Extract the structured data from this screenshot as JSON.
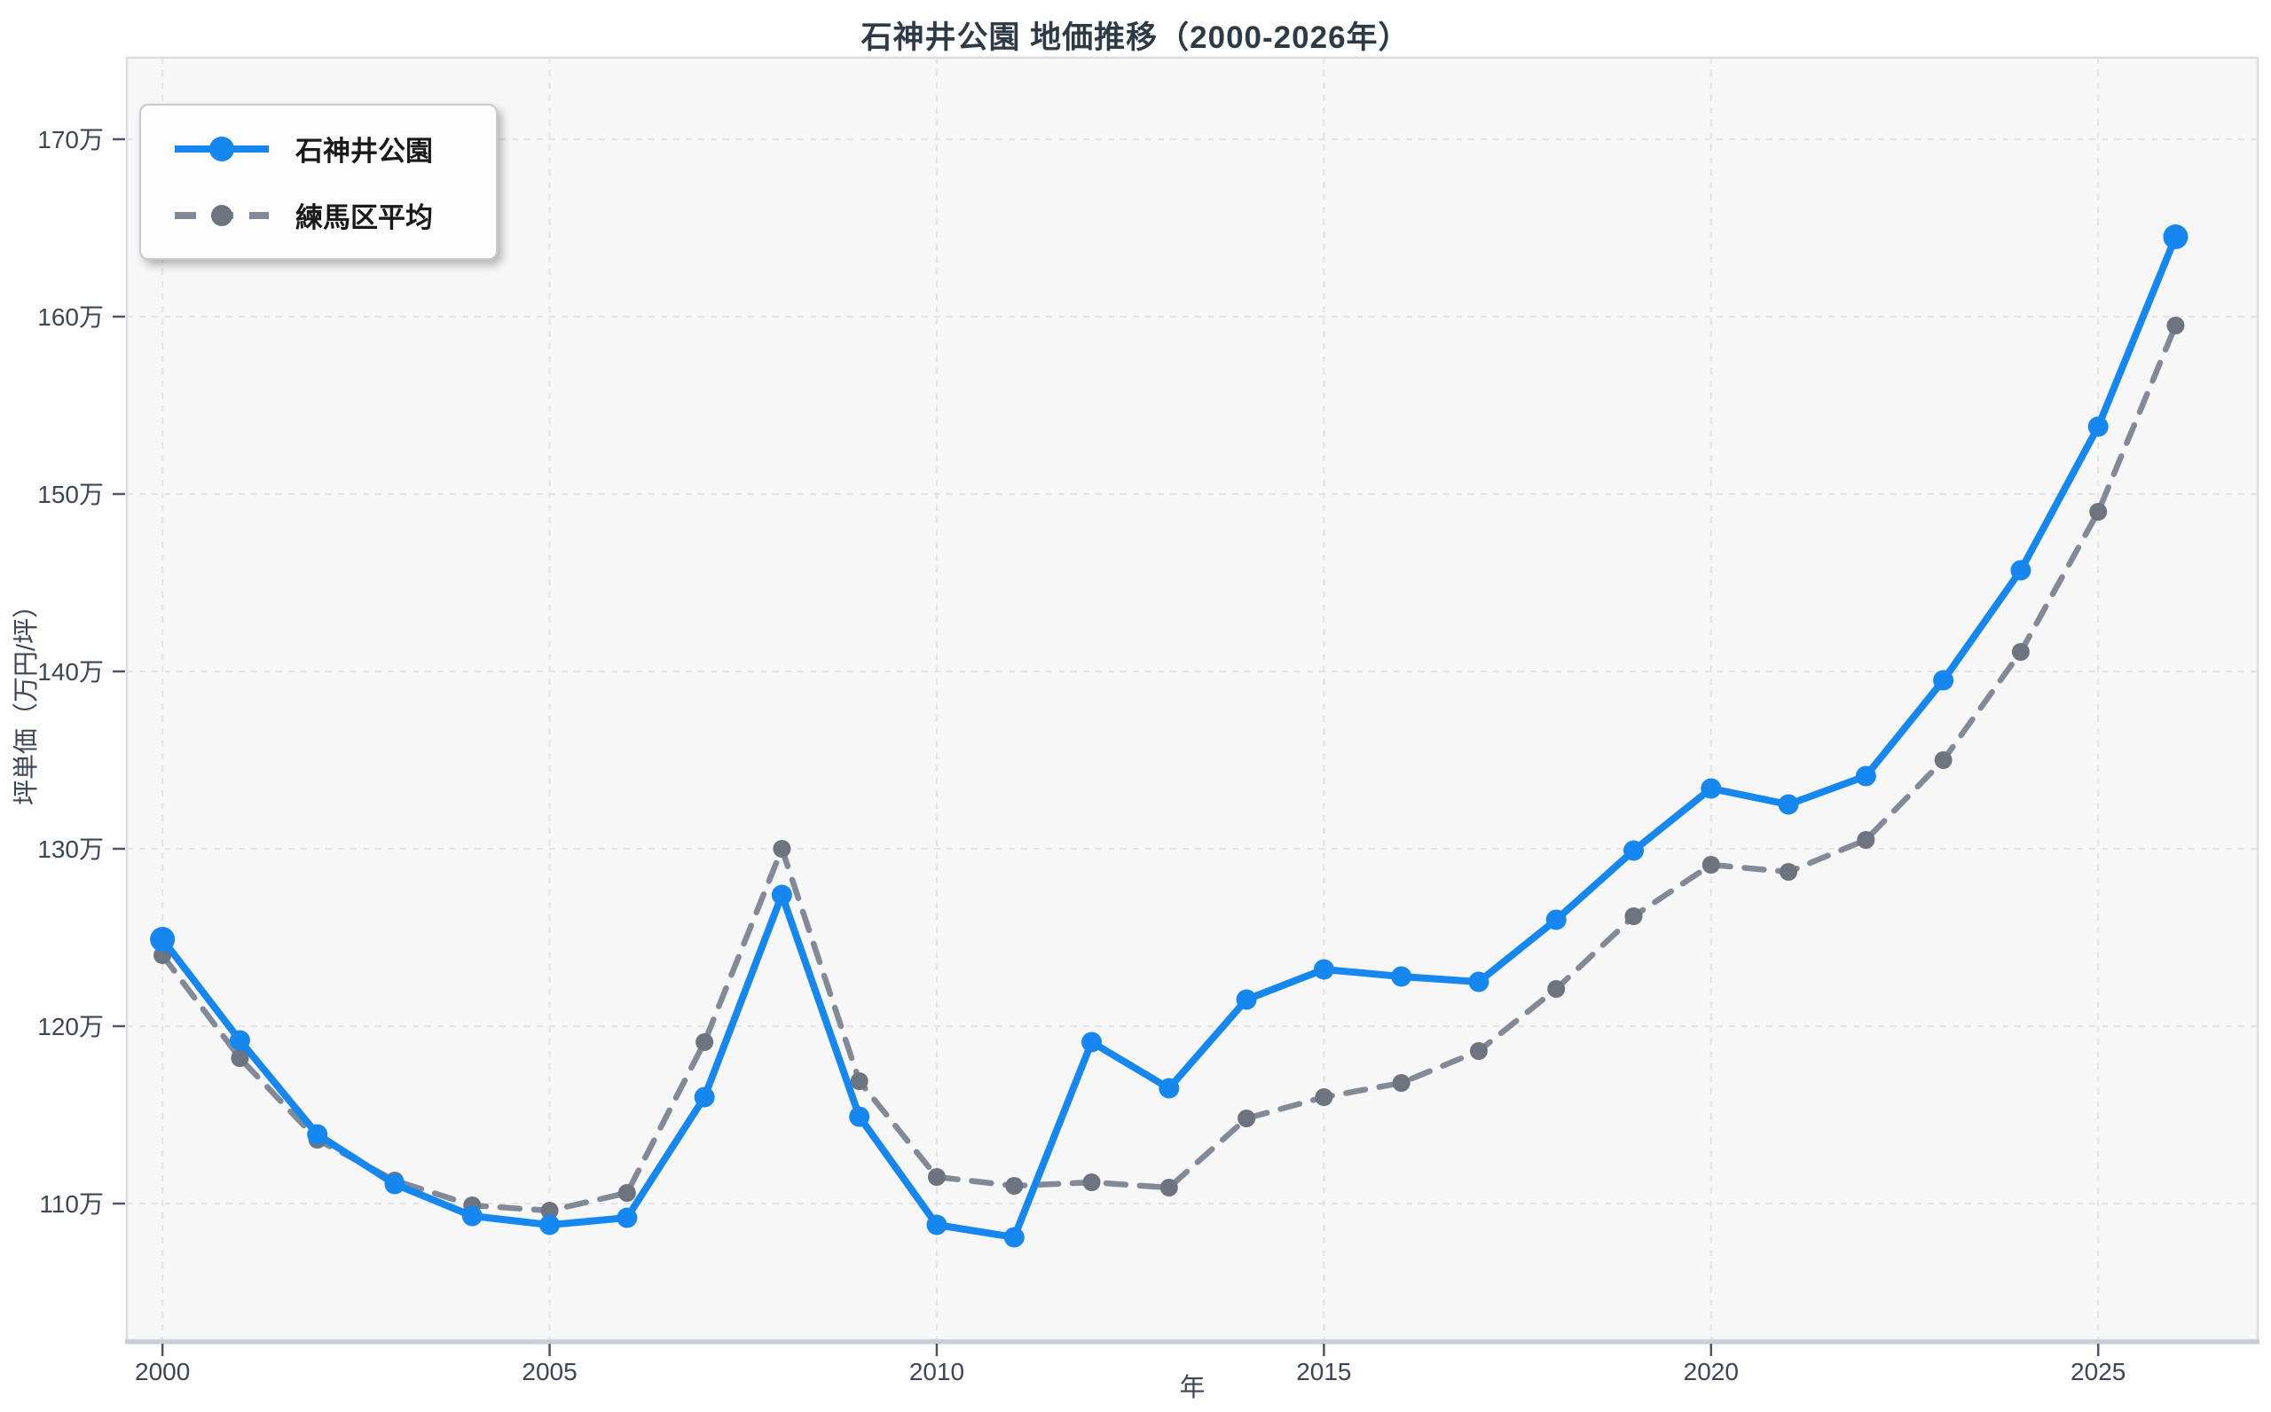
{
  "title": "石神井公園 地価推移（2000-2026年）",
  "axes": {
    "x_label": "年",
    "y_label": "坪単価（万円/坪）",
    "y_tick_suffix": "万"
  },
  "colors": {
    "main_line": "#1787f0",
    "avg_line": "#828a97",
    "avg_marker": "#6d7480",
    "title_text": "#2e3a46",
    "tick_text": "#3c4654",
    "plot_bg": "#f7f7f8",
    "grid": "#e3e3e7",
    "plot_border": "#dcdce0",
    "axis_line": "#c9ced4",
    "tick_mark": "#4b5563"
  },
  "chart_data": {
    "type": "line",
    "title": "石神井公園 地価推移（2000-2026年）",
    "xlabel": "年",
    "ylabel": "坪単価（万円/坪）",
    "x": [
      2000,
      2001,
      2002,
      2003,
      2004,
      2005,
      2006,
      2007,
      2008,
      2009,
      2010,
      2011,
      2012,
      2013,
      2014,
      2015,
      2016,
      2017,
      2018,
      2019,
      2020,
      2021,
      2022,
      2023,
      2024,
      2025,
      2026
    ],
    "series": [
      {
        "name": "石神井公園",
        "style": "solid",
        "color": "#1787f0",
        "marker_color": "#1787f0",
        "values": [
          124.9,
          119.2,
          113.9,
          111.1,
          109.3,
          108.8,
          109.2,
          116.0,
          127.4,
          114.9,
          108.8,
          108.1,
          119.1,
          116.5,
          121.5,
          123.2,
          122.8,
          122.5,
          126.0,
          129.9,
          133.4,
          132.5,
          134.1,
          139.5,
          145.7,
          153.8,
          164.5
        ]
      },
      {
        "name": "練馬区平均",
        "style": "dashed",
        "color": "#828a97",
        "marker_color": "#6d7480",
        "values": [
          124.0,
          118.2,
          113.6,
          111.3,
          109.9,
          109.6,
          110.6,
          119.1,
          130.0,
          116.9,
          111.5,
          111.0,
          111.2,
          110.9,
          114.8,
          116.0,
          116.8,
          118.6,
          122.1,
          126.2,
          129.1,
          128.7,
          130.5,
          135.0,
          141.1,
          149.0,
          159.5
        ]
      }
    ],
    "x_ticks": [
      2000,
      2005,
      2010,
      2015,
      2020,
      2025
    ],
    "y_ticks": [
      110,
      120,
      130,
      140,
      150,
      160,
      170
    ],
    "xlim": [
      1999.54,
      2027.06
    ],
    "ylim": [
      102.3,
      174.6
    ],
    "grid": true,
    "legend_position": "top-left"
  }
}
